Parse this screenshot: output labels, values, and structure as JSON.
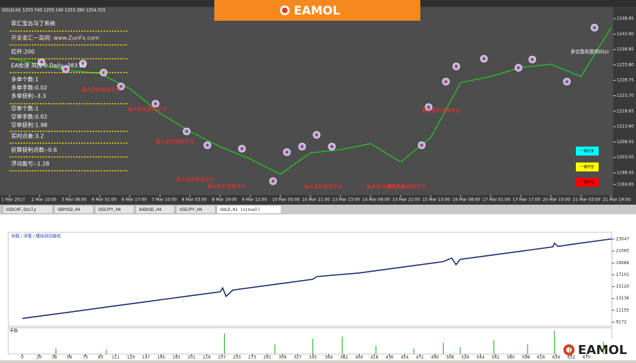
{
  "header": {
    "symbol_info": "GOLD,H1  1253.740 1255.140 1253.380 1254.315"
  },
  "logo": "EAMOL",
  "panel": {
    "title": "菲汇宝台马丁系统",
    "lines": [
      "开发者汇一直网: www.ZunFx.com",
      "杠杆:200",
      "EA检测 风控:0 Daily :383.02",
      "多单个数:1",
      "多单手数:0.02",
      "多单获利:-3.3",
      "空单个数:1",
      "空单手数:0.02",
      "空单获利:1.98",
      "实时点差:3.2",
      "折算获利点数:-0.6",
      "浮动盈亏:-1.28"
    ]
  },
  "buttons": [
    "一键平多",
    "一键平空",
    "一键平仓"
  ],
  "annotations": [
    "最大盈利追踪平仓",
    "最大盈利追踪平仓",
    "最大盈利追踪平仓",
    "最大盈利追踪平仓",
    "最大盈利追踪平仓",
    "最大盈利追踪平仓",
    "最大盈利追踪平仓",
    "最大盈利追踪平仓",
    "最大盈利追踪平仓",
    "多空盈利盈利0(s)"
  ],
  "tabs": [
    "USDCHF,Daily",
    "GBPUSD,H4",
    "USDJPY,H4",
    "AUDUSD,H4",
    "USDJPY,H4",
    "GOLD,H1 (visual)"
  ],
  "chart_data": [
    {
      "type": "line",
      "categories": [
        "1 Mar 2017",
        "2 Mar 10:00",
        "3 Mar 08:00",
        "6 Mar 01:00",
        "6 Mar 17:00",
        "7 Mar 10:00",
        "8 Mar 03:00",
        "8 Mar 19:00",
        "9 Mar 12:00",
        "10 Mar 05:00",
        "10 Mar 21:00",
        "13 Mar 13:00",
        "14 Mar 06:00",
        "14 Mar 22:00",
        "15 Mar 15:00",
        "16 Mar 08:00",
        "17 Mar 01:00",
        "17 Mar 17:00",
        "20 Mar 10:00",
        "21 Mar 03:00",
        "21 Mar 19:00"
      ],
      "series": [
        {
          "color": "#22c322",
          "values": [
            1236,
            1234,
            1232,
            1231,
            1226,
            1218,
            1212,
            1207,
            1203,
            1198,
            1205,
            1206,
            1208,
            1202,
            1210,
            1228,
            1230,
            1233,
            1234,
            1230,
            1246
          ]
        }
      ],
      "ylim": [
        1191.2,
        1252.8
      ],
      "yticks": [
        1248.95,
        {
          "value": 1243.9,
          "label": "1243.90"
        },
        1238.85,
        {
          "value": 1233.8,
          "label": "1233.80"
        },
        1228.75,
        {
          "value": 1223.7,
          "label": "1223.70"
        },
        1218.65,
        {
          "value": 1213.6,
          "label": "1213.60"
        },
        1208.55,
        {
          "value": 1203.5,
          "label": "1203.50"
        },
        1198.45,
        1194.65
      ]
    },
    {
      "type": "line",
      "title": "余额 / 净值 / 模拟测试曲线",
      "sub_label": "手数",
      "color": "#14246e",
      "x": [
        0,
        50,
        100,
        150,
        200,
        235,
        238,
        242,
        250,
        300,
        345,
        350,
        400,
        450,
        500,
        510,
        515,
        520,
        550,
        600,
        630,
        632,
        636,
        650,
        700
      ],
      "values": [
        9800,
        10750,
        11700,
        12650,
        13600,
        14265,
        14900,
        13500,
        14550,
        15500,
        16355,
        16800,
        17400,
        18350,
        19300,
        19900,
        18800,
        19680,
        20250,
        21200,
        21770,
        22400,
        21850,
        22150,
        23100
      ],
      "xlim": [
        -10,
        700
      ],
      "xticks": [
        0,
        20,
        38,
        56,
        75,
        93,
        111,
        129,
        147,
        165,
        183,
        201,
        219,
        237,
        255,
        273,
        291,
        309,
        327,
        345,
        364,
        382,
        400,
        418,
        436,
        454,
        472,
        490,
        508,
        526,
        544,
        562,
        580,
        598,
        616,
        634,
        652,
        670
      ],
      "ylim": [
        8478,
        24203
      ],
      "yticks": [
        23047,
        21065,
        19084,
        17101,
        15120,
        13136,
        11155,
        9172
      ]
    }
  ]
}
